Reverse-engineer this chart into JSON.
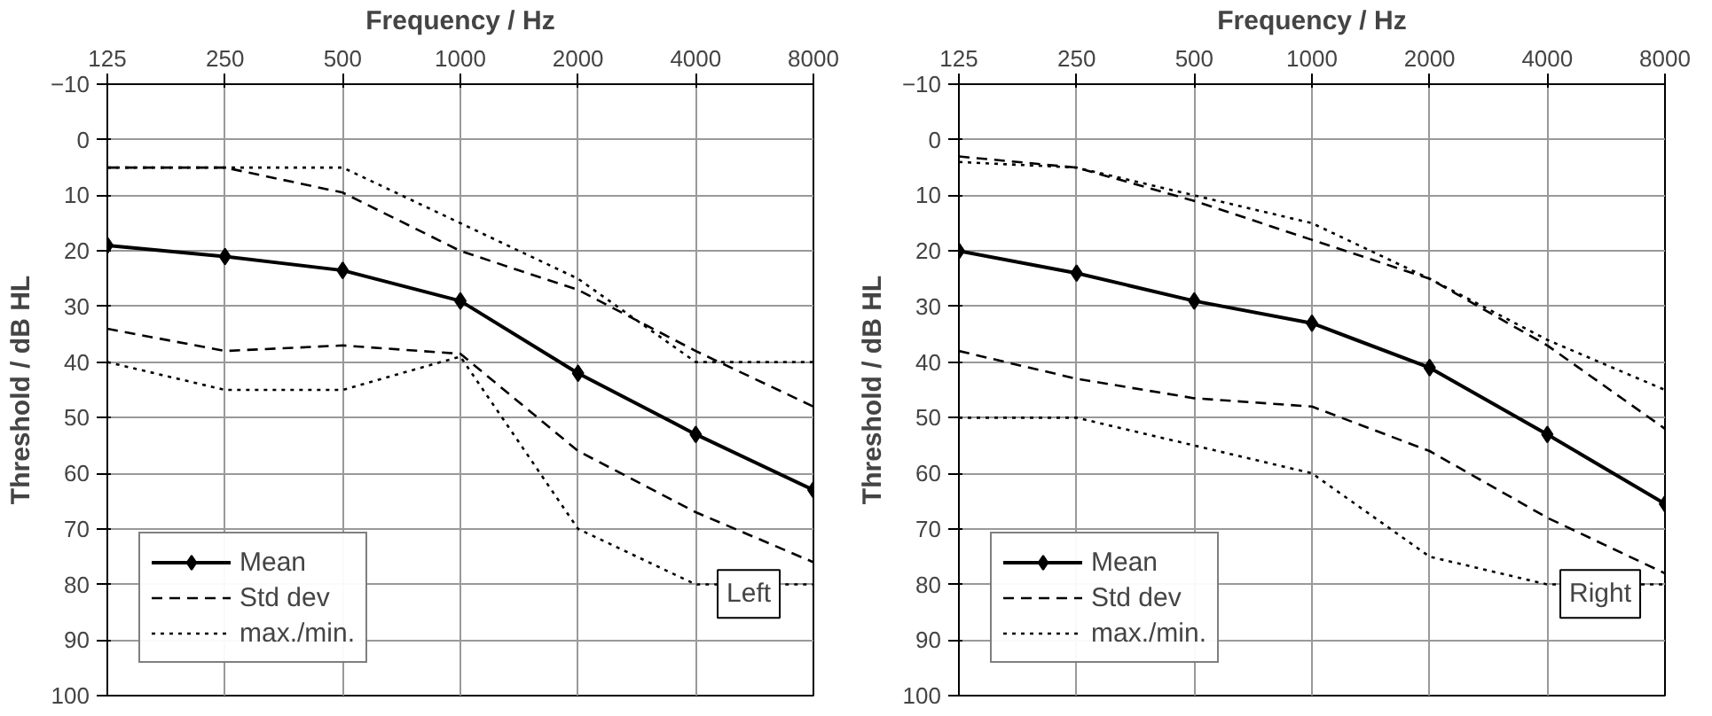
{
  "chart_data": [
    {
      "type": "line",
      "xlabel": "Frequency / Hz",
      "ylabel": "Threshold / dB HL",
      "categories": [
        "125",
        "250",
        "500",
        "1000",
        "2000",
        "4000",
        "8000"
      ],
      "ylim": [
        100,
        -10
      ],
      "yticks": [
        -10,
        0,
        10,
        20,
        30,
        40,
        50,
        60,
        70,
        80,
        90,
        100
      ],
      "grid": true,
      "legend": "bottom left",
      "annotations": [
        "Left"
      ],
      "series": [
        {
          "name": "Mean",
          "color": "#000000",
          "marker": "diamond",
          "line_style": "solid",
          "values": [
            19,
            21,
            23.5,
            29,
            42,
            53,
            63
          ]
        },
        {
          "name": "Std dev",
          "color": "#000000",
          "marker": "none",
          "line_style": "dashed",
          "values": [
            5,
            5,
            9.5,
            20,
            27,
            38,
            48
          ]
        },
        {
          "color": "#000000",
          "marker": "none",
          "line_style": "dashed",
          "values": [
            34,
            38,
            37,
            38.5,
            56,
            67,
            76
          ]
        },
        {
          "name": "max./min.",
          "color": "#000000",
          "marker": "none",
          "line_style": "dotted",
          "values": [
            5,
            5,
            5,
            15,
            25,
            40,
            40
          ]
        },
        {
          "color": "#000000",
          "marker": "none",
          "line_style": "dotted",
          "values": [
            40,
            45,
            45,
            39,
            70,
            80,
            80
          ]
        }
      ]
    },
    {
      "type": "line",
      "xlabel": "Frequency / Hz",
      "ylabel": "Threshold / dB HL",
      "categories": [
        "125",
        "250",
        "500",
        "1000",
        "2000",
        "4000",
        "8000"
      ],
      "ylim": [
        100,
        -10
      ],
      "yticks": [
        -10,
        0,
        10,
        20,
        30,
        40,
        50,
        60,
        70,
        80,
        90,
        100
      ],
      "grid": true,
      "legend": "bottom left",
      "annotations": [
        "Right"
      ],
      "series": [
        {
          "name": "Mean",
          "color": "#000000",
          "marker": "diamond",
          "line_style": "solid",
          "values": [
            20,
            24,
            29,
            33,
            41,
            53,
            65.5
          ]
        },
        {
          "name": "Std dev",
          "color": "#000000",
          "marker": "none",
          "line_style": "dashed",
          "values": [
            3,
            5,
            11,
            18,
            25,
            37,
            52
          ]
        },
        {
          "color": "#000000",
          "marker": "none",
          "line_style": "dashed",
          "values": [
            38,
            43,
            46.5,
            48,
            56,
            68,
            78
          ]
        },
        {
          "name": "max./min.",
          "color": "#000000",
          "marker": "none",
          "line_style": "dotted",
          "values": [
            4,
            5,
            10,
            15,
            25,
            36,
            45
          ]
        },
        {
          "color": "#000000",
          "marker": "none",
          "line_style": "dotted",
          "values": [
            50,
            50,
            55,
            60,
            75,
            80,
            80
          ]
        }
      ]
    }
  ]
}
